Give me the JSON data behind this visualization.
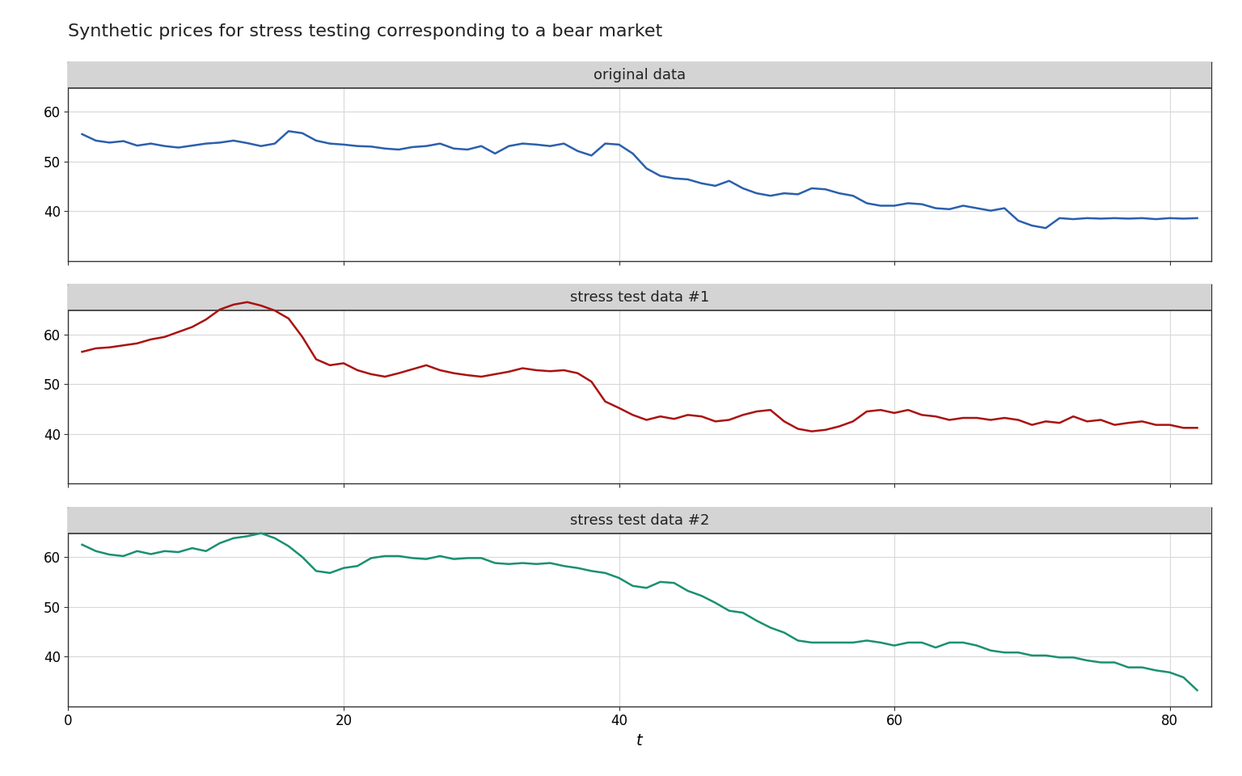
{
  "title": "Synthetic prices for stress testing corresponding to a bear market",
  "xlabel": "t",
  "title_fontsize": 16,
  "label_fontsize": 14,
  "tick_fontsize": 12,
  "panel_label_fontsize": 13,
  "background_color": "#ffffff",
  "panel_header_color": "#d4d4d4",
  "panel_border_color": "#333333",
  "grid_color": "#d8d8d8",
  "original_label": "original data",
  "stress1_label": "stress test data #1",
  "stress2_label": "stress test data #2",
  "line_color_original": "#2b5fad",
  "line_color_stress1": "#aa1111",
  "line_color_stress2": "#1a9070",
  "line_width": 1.8,
  "t": [
    1,
    2,
    3,
    4,
    5,
    6,
    7,
    8,
    9,
    10,
    11,
    12,
    13,
    14,
    15,
    16,
    17,
    18,
    19,
    20,
    21,
    22,
    23,
    24,
    25,
    26,
    27,
    28,
    29,
    30,
    31,
    32,
    33,
    34,
    35,
    36,
    37,
    38,
    39,
    40,
    41,
    42,
    43,
    44,
    45,
    46,
    47,
    48,
    49,
    50,
    51,
    52,
    53,
    54,
    55,
    56,
    57,
    58,
    59,
    60,
    61,
    62,
    63,
    64,
    65,
    66,
    67,
    68,
    69,
    70,
    71,
    72,
    73,
    74,
    75,
    76,
    77,
    78,
    79,
    80,
    81,
    82
  ],
  "original": [
    55.5,
    54.2,
    53.8,
    54.1,
    53.2,
    53.6,
    53.1,
    52.8,
    53.2,
    53.6,
    53.8,
    54.2,
    53.7,
    53.1,
    53.6,
    56.1,
    55.7,
    54.2,
    53.6,
    53.4,
    53.1,
    53.0,
    52.6,
    52.4,
    52.9,
    53.1,
    53.6,
    52.6,
    52.4,
    53.1,
    51.6,
    53.1,
    53.6,
    53.4,
    53.1,
    53.6,
    52.1,
    51.2,
    53.6,
    53.4,
    51.6,
    48.6,
    47.1,
    46.6,
    46.4,
    45.6,
    45.1,
    46.1,
    44.6,
    43.6,
    43.1,
    43.6,
    43.4,
    44.6,
    44.4,
    43.6,
    43.1,
    41.6,
    41.1,
    41.1,
    41.6,
    41.4,
    40.6,
    40.4,
    41.1,
    40.6,
    40.1,
    40.6,
    38.1,
    37.1,
    36.6,
    38.6,
    38.4,
    38.6,
    38.5,
    38.6,
    38.5,
    38.6,
    38.4,
    38.6,
    38.5,
    38.6
  ],
  "stress1": [
    56.5,
    57.2,
    57.4,
    57.8,
    58.2,
    59.0,
    59.5,
    60.5,
    61.5,
    63.0,
    65.0,
    66.0,
    66.5,
    65.8,
    64.8,
    63.2,
    59.5,
    55.0,
    53.8,
    54.2,
    52.8,
    52.0,
    51.5,
    52.2,
    53.0,
    53.8,
    52.8,
    52.2,
    51.8,
    51.5,
    52.0,
    52.5,
    53.2,
    52.8,
    52.6,
    52.8,
    52.2,
    50.5,
    46.5,
    45.2,
    43.8,
    42.8,
    43.5,
    43.0,
    43.8,
    43.5,
    42.5,
    42.8,
    43.8,
    44.5,
    44.8,
    42.5,
    41.0,
    40.5,
    40.8,
    41.5,
    42.5,
    44.5,
    44.8,
    44.2,
    44.8,
    43.8,
    43.5,
    42.8,
    43.2,
    43.2,
    42.8,
    43.2,
    42.8,
    41.8,
    42.5,
    42.2,
    43.5,
    42.5,
    42.8,
    41.8,
    42.2,
    42.5,
    41.8,
    41.8,
    41.2,
    41.2
  ],
  "stress2": [
    62.5,
    61.2,
    60.5,
    60.2,
    61.2,
    60.6,
    61.2,
    61.0,
    61.8,
    61.2,
    62.8,
    63.8,
    64.2,
    64.8,
    63.8,
    62.2,
    60.0,
    57.2,
    56.8,
    57.8,
    58.2,
    59.8,
    60.2,
    60.2,
    59.8,
    59.6,
    60.2,
    59.6,
    59.8,
    59.8,
    58.8,
    58.6,
    58.8,
    58.6,
    58.8,
    58.2,
    57.8,
    57.2,
    56.8,
    55.8,
    54.2,
    53.8,
    55.0,
    54.8,
    53.2,
    52.2,
    50.8,
    49.2,
    48.8,
    47.2,
    45.8,
    44.8,
    43.2,
    42.8,
    42.8,
    42.8,
    42.8,
    43.2,
    42.8,
    42.2,
    42.8,
    42.8,
    41.8,
    42.8,
    42.8,
    42.2,
    41.2,
    40.8,
    40.8,
    40.2,
    40.2,
    39.8,
    39.8,
    39.2,
    38.8,
    38.8,
    37.8,
    37.8,
    37.2,
    36.8,
    35.8,
    33.2
  ],
  "ylim": [
    30,
    70
  ],
  "yticks": [
    40,
    50,
    60
  ],
  "xticks": [
    0,
    20,
    40,
    60,
    80
  ],
  "xlim": [
    0,
    83
  ]
}
